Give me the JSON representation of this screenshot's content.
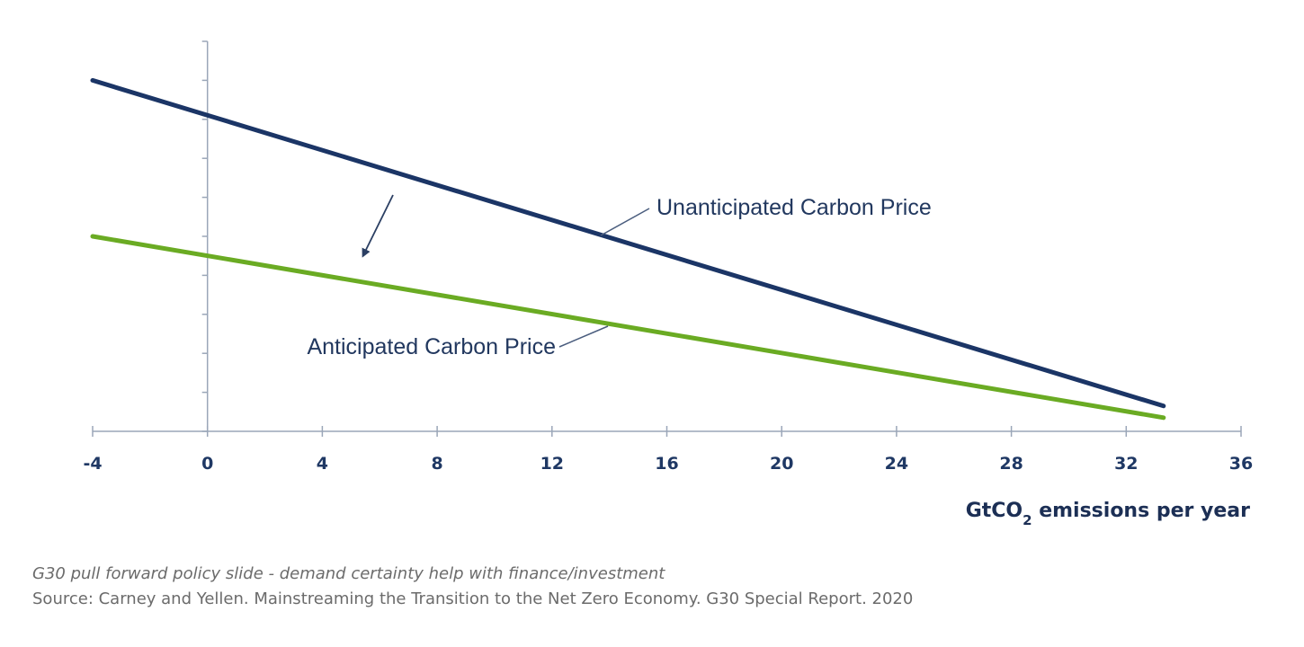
{
  "chart_data": {
    "type": "line",
    "x_ticks": [
      "-4",
      "0",
      "4",
      "8",
      "12",
      "16",
      "20",
      "24",
      "28",
      "32",
      "36"
    ],
    "xlim": [
      -4,
      36
    ],
    "ylim": [
      0,
      10
    ],
    "y_tick_count": 10,
    "xlabel": {
      "prefix": "GtCO",
      "subscript": "2",
      "suffix": " emissions per year"
    },
    "grid": false,
    "legend": "inline labels",
    "series": [
      {
        "name": "Unanticipated Carbon Price",
        "color": "#1b3566",
        "x": [
          -4,
          33.3
        ],
        "y": [
          9.0,
          0.65
        ]
      },
      {
        "name": "Anticipated Carbon Price",
        "color": "#6aab23",
        "x": [
          -4,
          33.3
        ],
        "y": [
          5.0,
          0.35
        ]
      }
    ],
    "annotation": "arrow pointing from the unanticipated line toward the anticipated line"
  },
  "caption": {
    "title": "G30 pull forward policy slide - demand certainty help with finance/investment",
    "source": "Source: Carney and Yellen. Mainstreaming the Transition to the Net Zero Economy. G30 Special Report. 2020"
  },
  "colors": {
    "axis": "#9aa6b8",
    "tick_text": "#1f3864",
    "caption_text": "#6b6b6b"
  }
}
